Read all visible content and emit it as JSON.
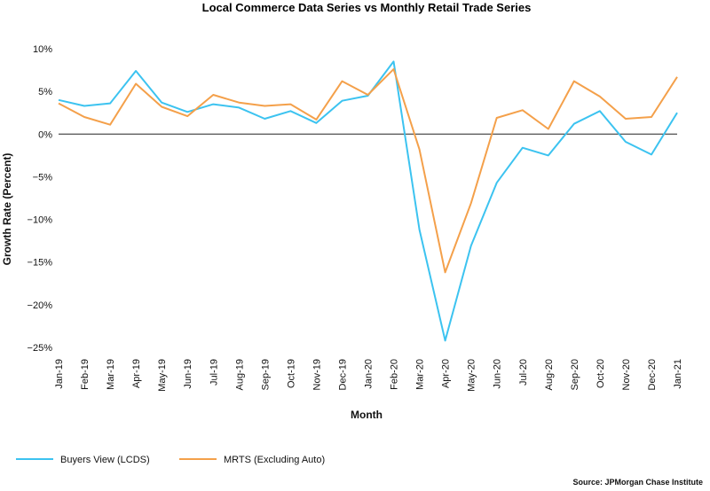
{
  "chart_data": {
    "type": "line",
    "title": "Local Commerce Data Series vs Monthly Retail Trade Series",
    "xlabel": "Month",
    "ylabel": "Growth Rate (Percent)",
    "ylim": [
      -25,
      10
    ],
    "yticks": [
      10,
      5,
      0,
      -5,
      -10,
      -15,
      -20,
      -25
    ],
    "ytick_labels": [
      "10%",
      "5%",
      "0%",
      "−5%",
      "−10%",
      "−15%",
      "−20%",
      "−25%"
    ],
    "zero_line": true,
    "grid": false,
    "legend_position": "bottom-left",
    "categories": [
      "Jan-19",
      "Feb-19",
      "Mar-19",
      "Apr-19",
      "May-19",
      "Jun-19",
      "Jul-19",
      "Aug-19",
      "Sep-19",
      "Oct-19",
      "Nov-19",
      "Dec-19",
      "Jan-20",
      "Feb-20",
      "Mar-20",
      "Apr-20",
      "May-20",
      "Jun-20",
      "Jul-20",
      "Aug-20",
      "Sep-20",
      "Oct-20",
      "Nov-20",
      "Dec-20",
      "Jan-21"
    ],
    "series": [
      {
        "name": "Buyers View (LCDS)",
        "color": "#3cc3f0",
        "values": [
          4.0,
          3.3,
          3.6,
          7.4,
          3.7,
          2.6,
          3.5,
          3.1,
          1.8,
          2.7,
          1.3,
          3.9,
          4.5,
          8.5,
          -11.2,
          -24.2,
          -13.1,
          -5.7,
          -1.6,
          -2.5,
          1.2,
          2.7,
          -0.9,
          -2.4,
          2.5
        ]
      },
      {
        "name": "MRTS (Excluding Auto)",
        "color": "#f4a04a",
        "values": [
          3.6,
          2.0,
          1.1,
          5.9,
          3.2,
          2.1,
          4.6,
          3.7,
          3.3,
          3.5,
          1.7,
          6.2,
          4.6,
          7.6,
          -1.8,
          -16.2,
          -8.1,
          1.9,
          2.8,
          0.6,
          6.2,
          4.4,
          1.8,
          2.0,
          6.7
        ]
      }
    ],
    "source": "Source: JPMorgan Chase Institute"
  }
}
